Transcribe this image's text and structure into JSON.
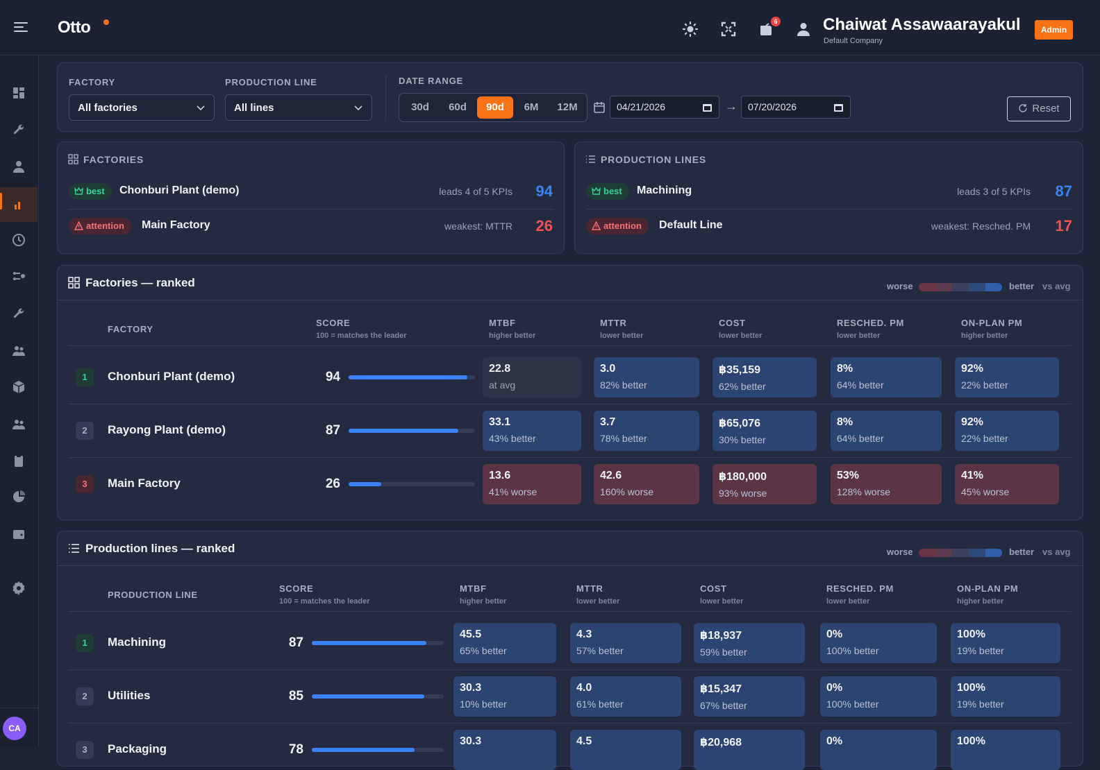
{
  "header": {
    "brand": "Otto",
    "notification_count": "6",
    "user_name": "Chaiwat Assawaarayakul",
    "company": "Default Company",
    "role_badge": "Admin",
    "icons": [
      "menu-icon",
      "brightness-icon",
      "fullscreen-icon",
      "notification-icon",
      "user-icon"
    ]
  },
  "sidebar": {
    "items": [
      "dashboard-icon",
      "wrench-icon",
      "person-icon",
      "chart-icon",
      "history-icon",
      "workflow-icon",
      "tools-icon",
      "team-icon",
      "box-icon",
      "users-icon",
      "clipboard-icon",
      "pie-icon",
      "wallet-icon",
      "settings-icon"
    ],
    "active": "chart-icon",
    "avatar_initials": "CA"
  },
  "filters": {
    "factory_label": "FACTORY",
    "factory_value": "All factories",
    "line_label": "PRODUCTION LINE",
    "line_value": "All lines",
    "date_label": "DATE RANGE",
    "ranges": [
      "30d",
      "60d",
      "90d",
      "6M",
      "12M"
    ],
    "selected_range": "90d",
    "date_from": "04/21/2026",
    "date_to": "07/20/2026",
    "date_arrow": "→",
    "reset_label": "Reset"
  },
  "summary": {
    "factories": {
      "title": "FACTORIES",
      "best": {
        "badge": "best",
        "name": "Chonburi Plant (demo)",
        "note": "leads 4 of 5 KPIs",
        "score": "94"
      },
      "attention": {
        "badge": "attention",
        "name": "Main Factory",
        "note": "weakest: MTTR",
        "score": "26"
      }
    },
    "lines": {
      "title": "PRODUCTION LINES",
      "best": {
        "badge": "best",
        "name": "Machining",
        "note": "leads 3 of 5 KPIs",
        "score": "87"
      },
      "attention": {
        "badge": "attention",
        "name": "Default Line",
        "note": "weakest: Resched. PM",
        "score": "17"
      }
    }
  },
  "legend": {
    "worse": "worse",
    "better": "better",
    "vs": "vs avg",
    "colors": [
      "#6b3444",
      "#5c3a4f",
      "#3d3f5e",
      "#2d4a7a",
      "#2f5fa8"
    ]
  },
  "factories_table": {
    "title": "Factories — ranked",
    "columns": {
      "name": "FACTORY",
      "score": "SCORE",
      "score_sub": "100 = matches the leader",
      "mtbf": "MTBF",
      "mtbf_sub": "higher better",
      "mttr": "MTTR",
      "mttr_sub": "lower better",
      "cost": "COST",
      "cost_sub": "lower better",
      "resched": "RESCHED. PM",
      "resched_sub": "lower better",
      "onplan": "ON-PLAN PM",
      "onplan_sub": "higher better"
    },
    "rows": [
      {
        "rank": "1",
        "name": "Chonburi Plant (demo)",
        "score": "94",
        "score_pct": 0.94,
        "cells": [
          {
            "v": "22.8",
            "d": "at avg",
            "t": "a"
          },
          {
            "v": "3.0",
            "d": "82% better",
            "t": "b"
          },
          {
            "v": "฿35,159",
            "d": "62% better",
            "t": "b"
          },
          {
            "v": "8%",
            "d": "64% better",
            "t": "b"
          },
          {
            "v": "92%",
            "d": "22% better",
            "t": "b"
          }
        ]
      },
      {
        "rank": "2",
        "name": "Rayong Plant (demo)",
        "score": "87",
        "score_pct": 0.87,
        "cells": [
          {
            "v": "33.1",
            "d": "43% better",
            "t": "b"
          },
          {
            "v": "3.7",
            "d": "78% better",
            "t": "b"
          },
          {
            "v": "฿65,076",
            "d": "30% better",
            "t": "b"
          },
          {
            "v": "8%",
            "d": "64% better",
            "t": "b"
          },
          {
            "v": "92%",
            "d": "22% better",
            "t": "b"
          }
        ]
      },
      {
        "rank": "3",
        "name": "Main Factory",
        "score": "26",
        "score_pct": 0.26,
        "cells": [
          {
            "v": "13.6",
            "d": "41% worse",
            "t": "w"
          },
          {
            "v": "42.6",
            "d": "160% worse",
            "t": "w"
          },
          {
            "v": "฿180,000",
            "d": "93% worse",
            "t": "w"
          },
          {
            "v": "53%",
            "d": "128% worse",
            "t": "w"
          },
          {
            "v": "41%",
            "d": "45% worse",
            "t": "w"
          }
        ]
      }
    ]
  },
  "lines_table": {
    "title": "Production lines — ranked",
    "columns": {
      "name": "PRODUCTION LINE",
      "score": "SCORE",
      "score_sub": "100 = matches the leader",
      "mtbf": "MTBF",
      "mtbf_sub": "higher better",
      "mttr": "MTTR",
      "mttr_sub": "lower better",
      "cost": "COST",
      "cost_sub": "lower better",
      "resched": "RESCHED. PM",
      "resched_sub": "lower better",
      "onplan": "ON-PLAN PM",
      "onplan_sub": "higher better"
    },
    "rows": [
      {
        "rank": "1",
        "name": "Machining",
        "score": "87",
        "score_pct": 0.87,
        "cells": [
          {
            "v": "45.5",
            "d": "65% better",
            "t": "b"
          },
          {
            "v": "4.3",
            "d": "57% better",
            "t": "b"
          },
          {
            "v": "฿18,937",
            "d": "59% better",
            "t": "b"
          },
          {
            "v": "0%",
            "d": "100% better",
            "t": "b"
          },
          {
            "v": "100%",
            "d": "19% better",
            "t": "b"
          }
        ]
      },
      {
        "rank": "2",
        "name": "Utilities",
        "score": "85",
        "score_pct": 0.85,
        "cells": [
          {
            "v": "30.3",
            "d": "10% better",
            "t": "b"
          },
          {
            "v": "4.0",
            "d": "61% better",
            "t": "b"
          },
          {
            "v": "฿15,347",
            "d": "67% better",
            "t": "b"
          },
          {
            "v": "0%",
            "d": "100% better",
            "t": "b"
          },
          {
            "v": "100%",
            "d": "19% better",
            "t": "b"
          }
        ]
      },
      {
        "rank": "3",
        "name": "Packaging",
        "score": "78",
        "score_pct": 0.78,
        "cells": [
          {
            "v": "30.3",
            "d": "",
            "t": "b"
          },
          {
            "v": "4.5",
            "d": "",
            "t": "b"
          },
          {
            "v": "฿20,968",
            "d": "",
            "t": "b"
          },
          {
            "v": "0%",
            "d": "",
            "t": "b"
          },
          {
            "v": "100%",
            "d": "",
            "t": "b"
          }
        ]
      }
    ]
  }
}
